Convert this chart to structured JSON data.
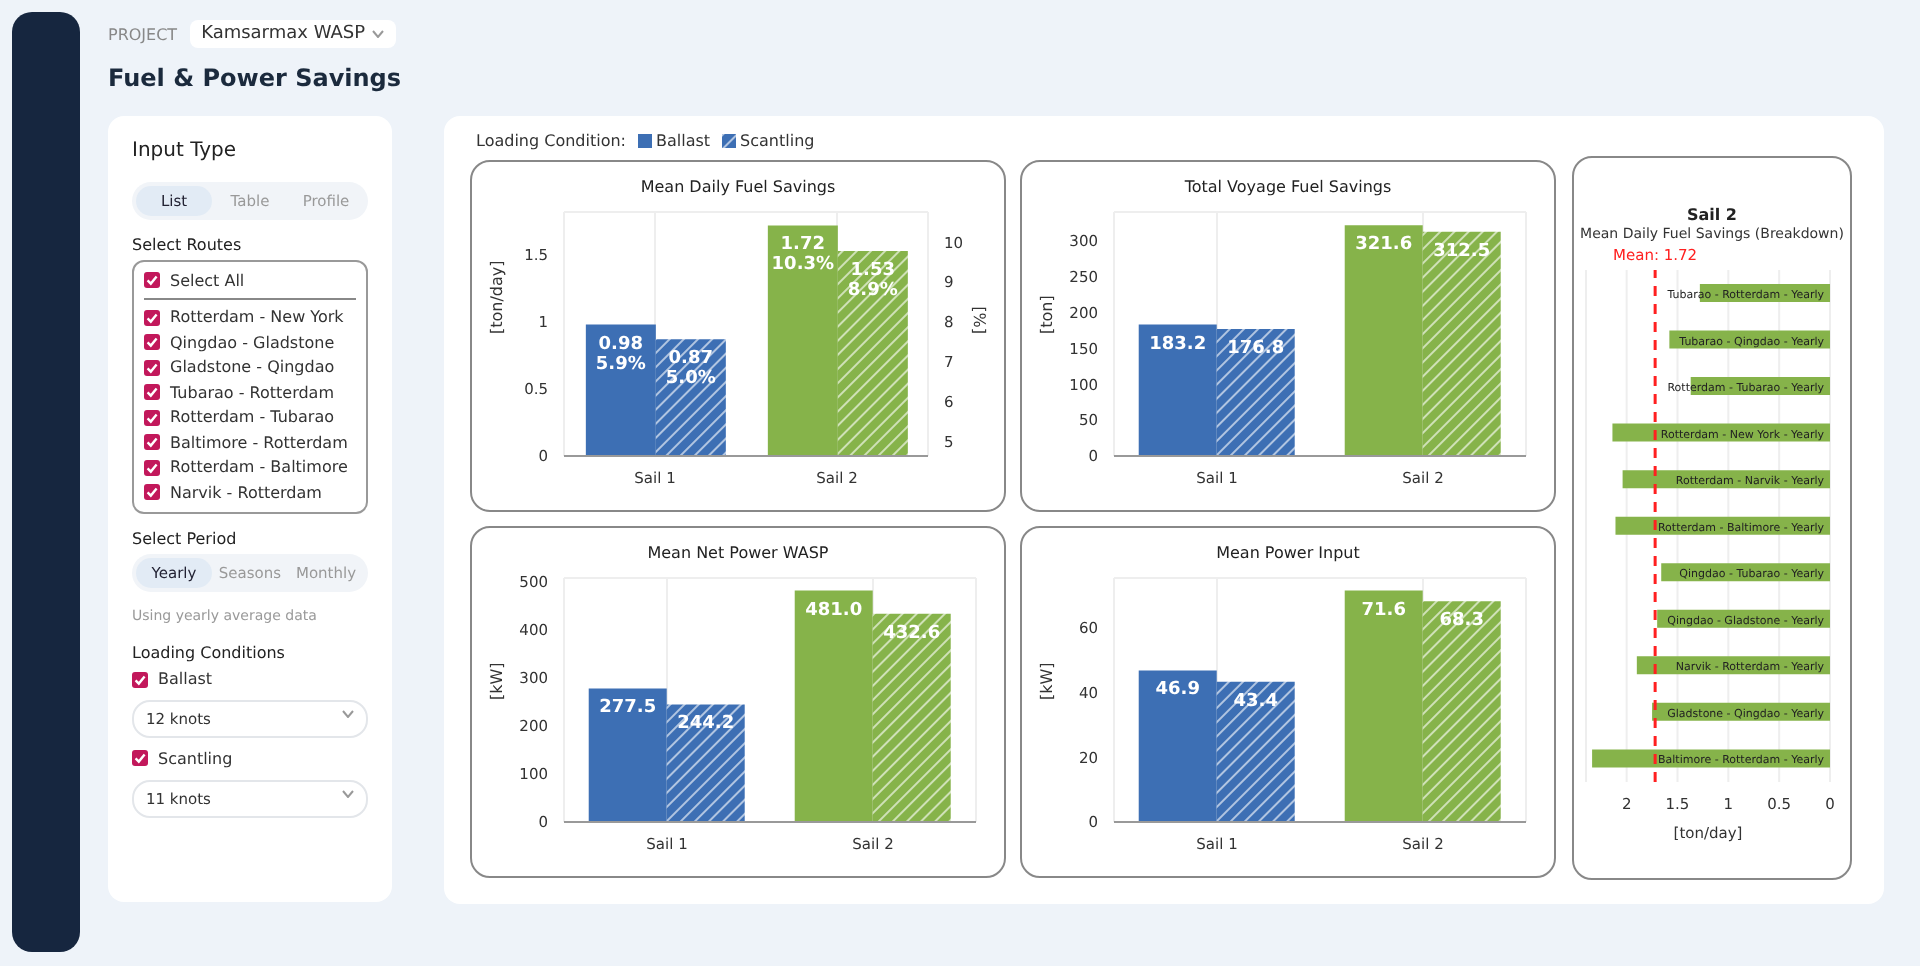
{
  "chart_data": [
    {
      "type": "other",
      "title": "Fuel & Power Savings",
      "annotations": [
        "PROJECT",
        "Kamsarmax WASP"
      ]
    },
    {
      "type": "other",
      "title": "Input Type",
      "annotations": [
        "List",
        "Table",
        "Profile",
        "Select Routes",
        "Select All",
        "Rotterdam - New York",
        "Qingdao - Gladstone",
        "Gladstone - Qingdao",
        "Tubarao - Rotterdam",
        "Rotterdam - Tubarao",
        "Baltimore - Rotterdam",
        "Rotterdam - Baltimore",
        "Narvik - Rotterdam",
        "Select Period",
        "Yearly",
        "Seasons",
        "Monthly",
        "Using yearly average data",
        "Loading Conditions",
        "Ballast",
        "12 knots",
        "Scantling",
        "11 knots"
      ]
    },
    {
      "type": "bar",
      "title": "Mean Daily Fuel Savings",
      "ylabel": "[ton/day]",
      "y2label": "[%]",
      "categories": [
        "Sail 1",
        "Sail 2"
      ],
      "legend_title": "Loading Condition:",
      "legend": "top left",
      "series": [
        {
          "name": "Ballast",
          "colors": [
            "#3d6fb4",
            "#86b34a"
          ],
          "values": [
            0.98,
            1.72
          ],
          "value_labels": [
            "0.98\n5.9%",
            "1.72\n10.3%"
          ]
        },
        {
          "name": "Scantling",
          "colors": [
            "#3d6fb4",
            "#86b34a"
          ],
          "values": [
            0.87,
            1.53
          ],
          "value_labels": [
            "0.87\n5.0%",
            "1.53\n8.9%"
          ]
        }
      ],
      "ylim": [
        0,
        1.82
      ],
      "yticks": [
        0,
        0.5,
        1,
        1.5
      ],
      "y2lim": [
        4.63,
        10.76
      ],
      "y2ticks": [
        5,
        6,
        7,
        8,
        9,
        10
      ],
      "grid": true
    },
    {
      "type": "bar",
      "title": "Total Voyage Fuel Savings",
      "ylabel": "[ton]",
      "categories": [
        "Sail 1",
        "Sail 2"
      ],
      "series": [
        {
          "colors": [
            "#3d6fb4",
            "#86b34a"
          ],
          "values": [
            183.2,
            321.6
          ],
          "value_labels": [
            "183.2",
            "321.6"
          ]
        },
        {
          "colors": [
            "#3d6fb4",
            "#86b34a"
          ],
          "values": [
            176.8,
            312.5
          ],
          "value_labels": [
            "176.8",
            "312.5"
          ]
        }
      ],
      "ylim": [
        0,
        340
      ],
      "yticks": [
        0,
        50,
        100,
        150,
        200,
        250,
        300
      ],
      "grid": true
    },
    {
      "type": "bar",
      "title": "Mean Net Power WASP",
      "ylabel": "[kW]",
      "categories": [
        "Sail 1",
        "Sail 2"
      ],
      "series": [
        {
          "colors": [
            "#3d6fb4",
            "#86b34a"
          ],
          "values": [
            277.5,
            481.0
          ],
          "value_labels": [
            "277.5",
            "481.0"
          ]
        },
        {
          "colors": [
            "#3d6fb4",
            "#86b34a"
          ],
          "values": [
            244.2,
            432.6
          ],
          "value_labels": [
            "244.2",
            "432.6"
          ]
        }
      ],
      "ylim": [
        0,
        507
      ],
      "yticks": [
        0,
        100,
        200,
        300,
        400,
        500
      ],
      "grid": true
    },
    {
      "type": "bar",
      "title": "Mean Power Input",
      "ylabel": "[kW]",
      "categories": [
        "Sail 1",
        "Sail 2"
      ],
      "series": [
        {
          "colors": [
            "#3d6fb4",
            "#86b34a"
          ],
          "values": [
            46.9,
            71.6
          ],
          "value_labels": [
            "46.9",
            "71.6"
          ]
        },
        {
          "colors": [
            "#3d6fb4",
            "#86b34a"
          ],
          "values": [
            43.4,
            68.3
          ],
          "value_labels": [
            "43.4",
            "68.3"
          ]
        }
      ],
      "ylim": [
        0,
        75.5
      ],
      "yticks": [
        0,
        20,
        40,
        60
      ],
      "grid": true
    },
    {
      "type": "bar",
      "orientation": "horizontal",
      "title": "Sail 2",
      "subtitle": "Mean Daily Fuel Savings (Breakdown)",
      "xlabel": "[ton/day]",
      "categories": [
        "Tubarao - Rotterdam - Yearly",
        "Tubarao - Qingdao - Yearly",
        "Rotterdam - Tubarao - Yearly",
        "Rotterdam - New York - Yearly",
        "Rotterdam - Narvik - Yearly",
        "Rotterdam - Baltimore - Yearly",
        "Qingdao - Tubarao - Yearly",
        "Qingdao - Gladstone - Yearly",
        "Narvik - Rotterdam - Yearly",
        "Gladstone - Qingdao - Yearly",
        "Baltimore - Rotterdam - Yearly"
      ],
      "values": [
        1.28,
        1.58,
        1.37,
        2.14,
        2.04,
        2.11,
        1.66,
        1.7,
        1.9,
        1.75,
        2.34
      ],
      "color": "#86b34a",
      "xlim": [
        2.4,
        0
      ],
      "xticks": [
        2,
        1.5,
        1,
        0.5,
        0
      ],
      "grid": "x",
      "ref_lines": [
        {
          "axis": "x",
          "value": 1.72,
          "label": "Mean: 1.72",
          "color": "#ff2020",
          "line_style": "dashed"
        }
      ]
    }
  ]
}
